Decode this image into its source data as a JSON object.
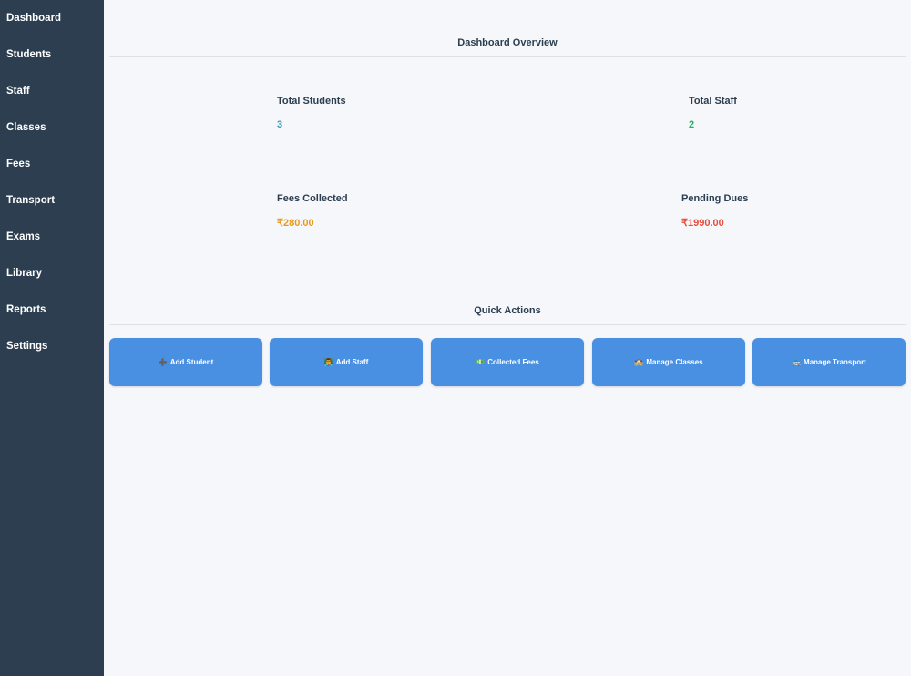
{
  "sidebar": {
    "items": [
      {
        "label": "Dashboard"
      },
      {
        "label": "Students"
      },
      {
        "label": "Staff"
      },
      {
        "label": "Classes"
      },
      {
        "label": "Fees"
      },
      {
        "label": "Transport"
      },
      {
        "label": "Exams"
      },
      {
        "label": "Library"
      },
      {
        "label": "Reports"
      },
      {
        "label": "Settings"
      }
    ]
  },
  "overview": {
    "title": "Dashboard Overview",
    "stats": [
      {
        "label": "Total Students",
        "value": "3",
        "color": "#2a9fb8"
      },
      {
        "label": "Total Staff",
        "value": "2",
        "color": "#27ae60"
      },
      {
        "label": "Fees Collected",
        "value": "₹280.00",
        "color": "#e69a1c"
      },
      {
        "label": "Pending Dues",
        "value": "₹1990.00",
        "color": "#e74c3c"
      }
    ]
  },
  "quick_actions": {
    "title": "Quick Actions",
    "buttons": [
      {
        "icon": "plus-icon",
        "glyph": "➕",
        "label": "Add Student"
      },
      {
        "icon": "staff-person-icon",
        "glyph": "👨‍🏫",
        "label": "Add Staff"
      },
      {
        "icon": "money-icon",
        "glyph": "💵",
        "label": "Collected Fees"
      },
      {
        "icon": "school-icon",
        "glyph": "🏫",
        "label": "Manage Classes"
      },
      {
        "icon": "bus-icon",
        "glyph": "🚌",
        "label": "Manage Transport"
      }
    ]
  },
  "colors": {
    "sidebar": "#2c3e50",
    "button": "#4a90e2",
    "background": "#f5f7fa"
  }
}
